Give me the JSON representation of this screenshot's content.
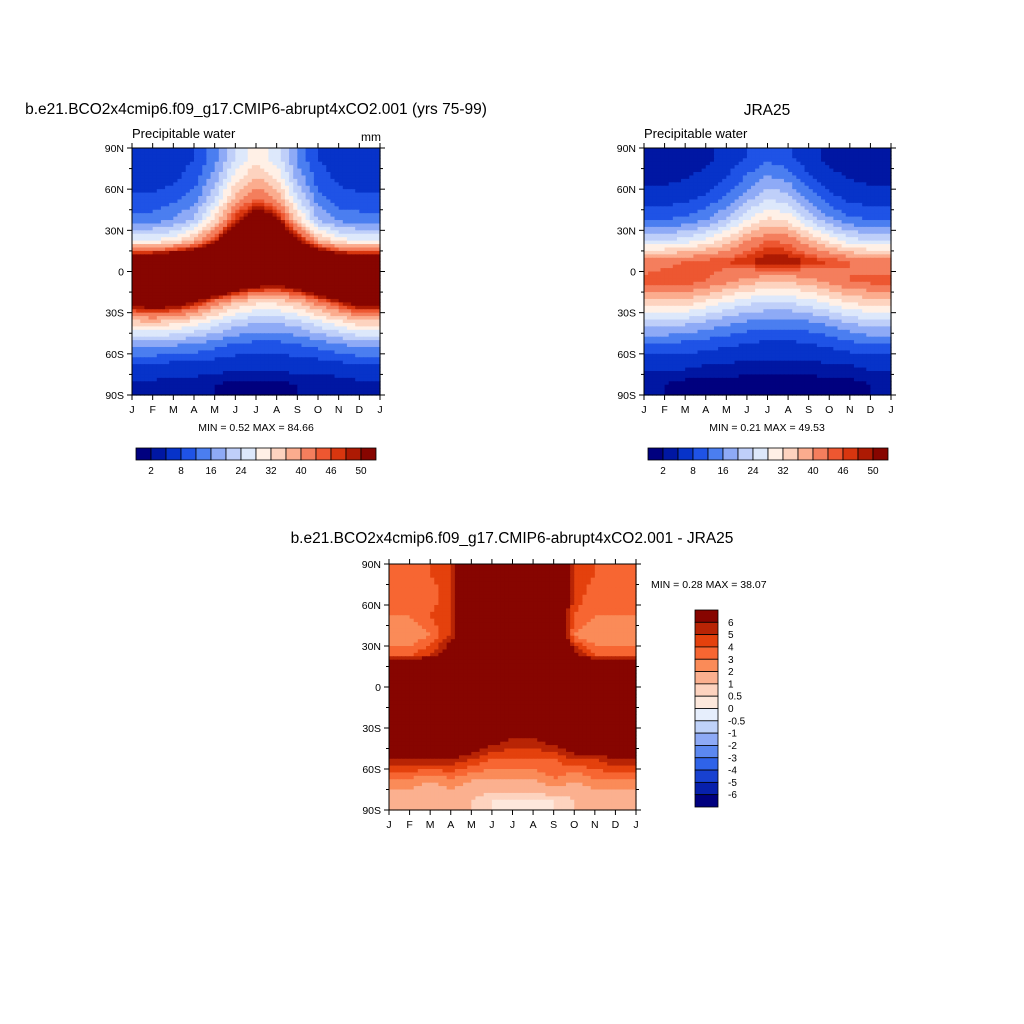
{
  "panel1": {
    "title": "b.e21.BCO2x4cmip6.f09_g17.CMIP6-abrupt4xCO2.001 (yrs 75-99)",
    "left_label": "Precipitable water",
    "right_label": "mm",
    "stats": "MIN =   0.52 MAX =  84.66"
  },
  "panel2": {
    "title": "JRA25",
    "left_label": "Precipitable water",
    "right_label": "",
    "stats": "MIN =   0.21 MAX =  49.53"
  },
  "panel3": {
    "title": "b.e21.BCO2x4cmip6.f09_g17.CMIP6-abrupt4xCO2.001 - JRA25",
    "stats": "MIN =   0.28 MAX =  38.07"
  },
  "abs_colors": [
    "#00007f",
    "#0017a3",
    "#0733c9",
    "#1f53e6",
    "#4b7ef0",
    "#8eaaf6",
    "#bfcff9",
    "#dde8fb",
    "#fff0e6",
    "#fdd3bf",
    "#fbac8e",
    "#f47e5d",
    "#ed5731",
    "#d8360f",
    "#ad1a03",
    "#870500"
  ],
  "abs_colorbar_labels": [
    "2",
    "8",
    "16",
    "24",
    "32",
    "40",
    "46",
    "50"
  ],
  "diff_colors": [
    "#870500",
    "#b82405",
    "#e4410d",
    "#f76632",
    "#fa8b58",
    "#fbb08f",
    "#fdd3bf",
    "#fde8dc",
    "#e6eefc",
    "#bfd2f9",
    "#8eaaf6",
    "#5c88f0",
    "#2f63e8",
    "#1841d0",
    "#0720ac",
    "#00007f"
  ],
  "diff_colorbar_labels": [
    "6",
    "5",
    "4",
    "3",
    "2",
    "1",
    "0.5",
    "0",
    "-0.5",
    "-1",
    "-2",
    "-3",
    "-4",
    "-5",
    "-6"
  ],
  "chart_data": [
    {
      "type": "heatmap",
      "title": "b.e21.BCO2x4cmip6.f09_g17.CMIP6-abrupt4xCO2.001 (yrs 75-99)",
      "subtitle": "Precipitable water",
      "units": "mm",
      "x": [
        "J",
        "F",
        "M",
        "A",
        "M",
        "J",
        "J",
        "A",
        "S",
        "O",
        "N",
        "D",
        "J"
      ],
      "y_ticks": [
        "90N",
        "60N",
        "30N",
        "0",
        "30S",
        "60S",
        "90S"
      ],
      "ylim": [
        -90,
        90
      ],
      "lat_centers": [
        82.5,
        67.5,
        52.5,
        37.5,
        22.5,
        7.5,
        -7.5,
        -22.5,
        -37.5,
        -52.5,
        -67.5,
        -82.5
      ],
      "values": [
        [
          5,
          5,
          6,
          8,
          14,
          24,
          30,
          26,
          15,
          8,
          6,
          5,
          5
        ],
        [
          6,
          6,
          7,
          10,
          18,
          30,
          37,
          32,
          19,
          10,
          7,
          6,
          6
        ],
        [
          9,
          9,
          11,
          14,
          24,
          38,
          45,
          40,
          25,
          14,
          10,
          9,
          9
        ],
        [
          14,
          14,
          16,
          21,
          33,
          48,
          56,
          52,
          35,
          20,
          15,
          14,
          14
        ],
        [
          28,
          28,
          31,
          37,
          48,
          60,
          68,
          66,
          52,
          38,
          30,
          28,
          28
        ],
        [
          60,
          62,
          65,
          68,
          72,
          76,
          78,
          78,
          75,
          68,
          62,
          60,
          60
        ],
        [
          74,
          76,
          78,
          76,
          70,
          62,
          56,
          54,
          58,
          64,
          70,
          74,
          74
        ],
        [
          54,
          56,
          55,
          50,
          42,
          36,
          33,
          33,
          36,
          42,
          48,
          54,
          54
        ],
        [
          34,
          35,
          33,
          30,
          26,
          22,
          20,
          20,
          22,
          26,
          30,
          34,
          34
        ],
        [
          18,
          18,
          17,
          16,
          14,
          12,
          11,
          11,
          12,
          14,
          16,
          18,
          18
        ],
        [
          8,
          8,
          7,
          7,
          6,
          5,
          5,
          5,
          6,
          6,
          7,
          8,
          8
        ],
        [
          3,
          3,
          2,
          2,
          2,
          1,
          1,
          1,
          2,
          2,
          2,
          3,
          3
        ]
      ],
      "levels": [
        2,
        4,
        8,
        12,
        16,
        20,
        24,
        28,
        32,
        36,
        40,
        44,
        46,
        48,
        50
      ],
      "min": 0.52,
      "max": 84.66
    },
    {
      "type": "heatmap",
      "title": "JRA25",
      "subtitle": "Precipitable water",
      "x": [
        "J",
        "F",
        "M",
        "A",
        "M",
        "J",
        "J",
        "A",
        "S",
        "O",
        "N",
        "D",
        "J"
      ],
      "y_ticks": [
        "90N",
        "60N",
        "30N",
        "0",
        "30S",
        "60S",
        "90S"
      ],
      "ylim": [
        -90,
        90
      ],
      "lat_centers": [
        82.5,
        67.5,
        52.5,
        37.5,
        22.5,
        7.5,
        -7.5,
        -22.5,
        -37.5,
        -52.5,
        -67.5,
        -82.5
      ],
      "values": [
        [
          2,
          2,
          2,
          3,
          5,
          8,
          11,
          9,
          5,
          3,
          2,
          2,
          2
        ],
        [
          3,
          3,
          4,
          5,
          8,
          13,
          17,
          15,
          9,
          5,
          4,
          3,
          3
        ],
        [
          6,
          6,
          7,
          9,
          13,
          19,
          24,
          22,
          15,
          10,
          7,
          6,
          6
        ],
        [
          12,
          12,
          13,
          16,
          21,
          28,
          33,
          31,
          24,
          17,
          13,
          12,
          12
        ],
        [
          24,
          24,
          26,
          29,
          34,
          40,
          44,
          43,
          37,
          31,
          26,
          24,
          24
        ],
        [
          42,
          43,
          44,
          45,
          46,
          48,
          50,
          50,
          48,
          46,
          44,
          42,
          42
        ],
        [
          45,
          46,
          46,
          44,
          41,
          38,
          36,
          36,
          38,
          41,
          44,
          45,
          45
        ],
        [
          34,
          35,
          34,
          31,
          28,
          25,
          24,
          24,
          26,
          29,
          32,
          34,
          34
        ],
        [
          22,
          22,
          21,
          19,
          17,
          15,
          14,
          14,
          15,
          17,
          20,
          22,
          22
        ],
        [
          12,
          12,
          11,
          10,
          9,
          8,
          7,
          7,
          8,
          9,
          11,
          12,
          12
        ],
        [
          5,
          5,
          5,
          4,
          4,
          3,
          3,
          3,
          3,
          4,
          4,
          5,
          5
        ],
        [
          2,
          2,
          1,
          1,
          1,
          1,
          1,
          1,
          1,
          1,
          1,
          2,
          2
        ]
      ],
      "levels": [
        2,
        4,
        8,
        12,
        16,
        20,
        24,
        28,
        32,
        36,
        40,
        44,
        46,
        48,
        50
      ],
      "min": 0.21,
      "max": 49.53
    },
    {
      "type": "heatmap",
      "title": "b.e21.BCO2x4cmip6.f09_g17.CMIP6-abrupt4xCO2.001 - JRA25",
      "x": [
        "J",
        "F",
        "M",
        "A",
        "M",
        "J",
        "J",
        "A",
        "S",
        "O",
        "N",
        "D",
        "J"
      ],
      "y_ticks": [
        "90N",
        "60N",
        "30N",
        "0",
        "30S",
        "60S",
        "90S"
      ],
      "ylim": [
        -90,
        90
      ],
      "lat_centers": [
        82.5,
        67.5,
        52.5,
        37.5,
        22.5,
        7.5,
        -7.5,
        -22.5,
        -37.5,
        -52.5,
        -67.5,
        -82.5
      ],
      "values": [
        [
          3,
          3,
          4,
          5,
          9,
          16,
          19,
          17,
          10,
          5,
          4,
          3,
          3
        ],
        [
          3,
          3,
          3,
          5,
          10,
          17,
          20,
          17,
          10,
          5,
          3,
          3,
          3
        ],
        [
          3,
          3,
          4,
          5,
          11,
          19,
          21,
          18,
          10,
          4,
          3,
          3,
          3
        ],
        [
          2,
          2,
          3,
          5,
          12,
          20,
          23,
          21,
          11,
          3,
          2,
          2,
          2
        ],
        [
          4,
          4,
          5,
          8,
          14,
          20,
          24,
          23,
          15,
          7,
          4,
          4,
          4
        ],
        [
          18,
          19,
          21,
          23,
          26,
          28,
          28,
          28,
          27,
          22,
          18,
          18,
          18
        ],
        [
          29,
          30,
          32,
          32,
          29,
          24,
          20,
          18,
          20,
          23,
          26,
          29,
          29
        ],
        [
          20,
          21,
          21,
          19,
          14,
          11,
          9,
          9,
          10,
          13,
          16,
          20,
          20
        ],
        [
          12,
          13,
          12,
          11,
          9,
          7,
          6,
          6,
          7,
          9,
          10,
          12,
          12
        ],
        [
          6,
          6,
          6,
          6,
          5,
          4,
          4,
          4,
          4,
          5,
          5,
          6,
          6
        ],
        [
          3,
          3,
          2,
          3,
          2,
          2,
          2,
          2,
          3,
          2,
          3,
          3,
          3
        ],
        [
          1,
          1,
          1,
          1,
          1,
          0.5,
          0.4,
          0.4,
          0.5,
          1,
          1,
          1,
          1
        ]
      ],
      "levels": [
        -6,
        -5,
        -4,
        -3,
        -2,
        -1,
        -0.5,
        0,
        0.5,
        1,
        2,
        3,
        4,
        5,
        6
      ],
      "min": 0.28,
      "max": 38.07
    }
  ]
}
